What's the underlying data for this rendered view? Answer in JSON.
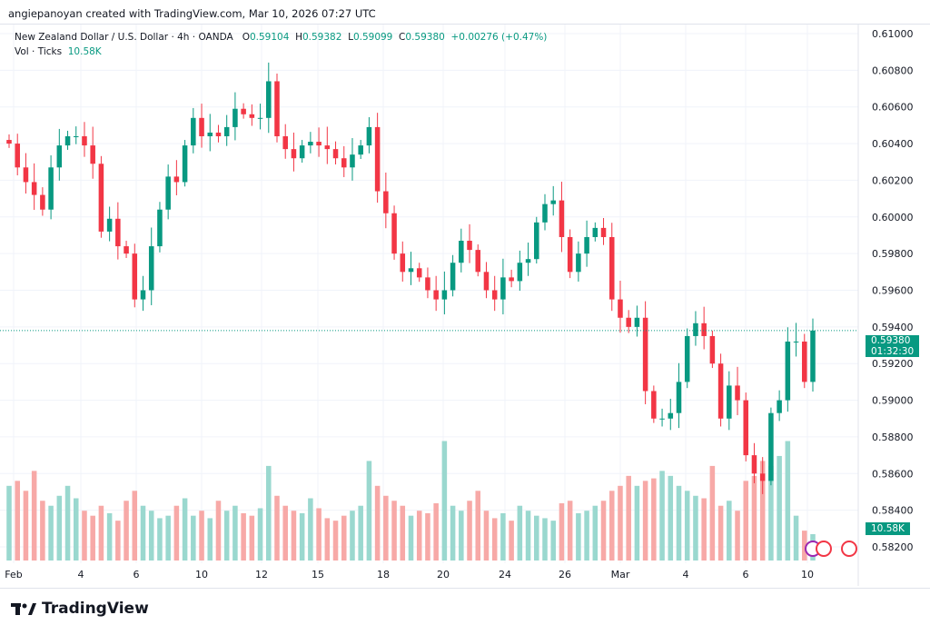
{
  "credit": "angiepanoyan created with TradingView.com, Mar 10, 2026 07:27 UTC",
  "legend": {
    "symbol": "New Zealand Dollar / U.S. Dollar · 4h · OANDA",
    "o_label": "O",
    "o": "0.59104",
    "h_label": "H",
    "h": "0.59382",
    "l_label": "L",
    "l": "0.59099",
    "c_label": "C",
    "c": "0.59380",
    "change": "+0.00276 (+0.47%)",
    "vol_label": "Vol · Ticks",
    "vol": "10.58K"
  },
  "price_badge": {
    "price": "0.59380",
    "countdown": "01:32:30"
  },
  "vol_badge": "10.58K",
  "logo": "TradingView",
  "colors": {
    "up": "#089981",
    "down": "#f23645",
    "up_vol": "#9ad8cf",
    "down_vol": "#f7a9a7"
  },
  "chart_data": {
    "type": "candlestick",
    "title": "New Zealand Dollar / U.S. Dollar · 4h · OANDA",
    "ylim": [
      0.582,
      0.61
    ],
    "y_ticks": [
      "0.61000",
      "0.60800",
      "0.60600",
      "0.60400",
      "0.60200",
      "0.60000",
      "0.59800",
      "0.59600",
      "0.59400",
      "0.59200",
      "0.59000",
      "0.58800",
      "0.58600",
      "0.58400",
      "0.58200"
    ],
    "x_ticks": [
      "Feb",
      "4",
      "6",
      "10",
      "12",
      "15",
      "18",
      "20",
      "24",
      "26",
      "Mar",
      "4",
      "6",
      "10"
    ],
    "closes": [
      0.604,
      0.6027,
      0.6019,
      0.6012,
      0.6004,
      0.6027,
      0.6039,
      0.6044,
      0.6044,
      0.6039,
      0.6029,
      0.5992,
      0.5999,
      0.5984,
      0.598,
      0.5955,
      0.596,
      0.5984,
      0.6004,
      0.6022,
      0.6019,
      0.6039,
      0.6054,
      0.6044,
      0.6046,
      0.6044,
      0.6049,
      0.6059,
      0.6056,
      0.6054,
      0.6054,
      0.6074,
      0.6044,
      0.6037,
      0.6032,
      0.6039,
      0.6041,
      0.6039,
      0.6037,
      0.6032,
      0.6027,
      0.6034,
      0.6039,
      0.6049,
      0.6014,
      0.6002,
      0.598,
      0.597,
      0.5972,
      0.5967,
      0.596,
      0.5955,
      0.596,
      0.5975,
      0.5987,
      0.5982,
      0.597,
      0.596,
      0.5955,
      0.5967,
      0.5965,
      0.5975,
      0.5977,
      0.5997,
      0.6007,
      0.6009,
      0.5989,
      0.597,
      0.598,
      0.5989,
      0.5994,
      0.5989,
      0.5955,
      0.5945,
      0.594,
      0.5945,
      0.5905,
      0.589,
      0.589,
      0.5893,
      0.591,
      0.5935,
      0.5942,
      0.5935,
      0.592,
      0.589,
      0.5908,
      0.59,
      0.587,
      0.586,
      0.5856,
      0.5893,
      0.59,
      0.5932,
      0.5932,
      0.591,
      0.5938
    ],
    "volumes": [
      30,
      32,
      28,
      36,
      24,
      22,
      26,
      30,
      25,
      20,
      18,
      22,
      19,
      16,
      24,
      28,
      22,
      20,
      17,
      18,
      22,
      25,
      18,
      20,
      17,
      24,
      20,
      22,
      19,
      18,
      21,
      38,
      26,
      22,
      20,
      19,
      25,
      21,
      17,
      16,
      18,
      20,
      22,
      40,
      30,
      26,
      24,
      22,
      18,
      20,
      19,
      23,
      48,
      22,
      20,
      24,
      28,
      20,
      17,
      19,
      16,
      22,
      20,
      18,
      17,
      16,
      23,
      24,
      19,
      20,
      22,
      24,
      28,
      30,
      34,
      30,
      32,
      33,
      36,
      34,
      30,
      28,
      26,
      25,
      38,
      22,
      24,
      20,
      32,
      34,
      40,
      38,
      42,
      48,
      18,
      12,
      10.58
    ]
  }
}
